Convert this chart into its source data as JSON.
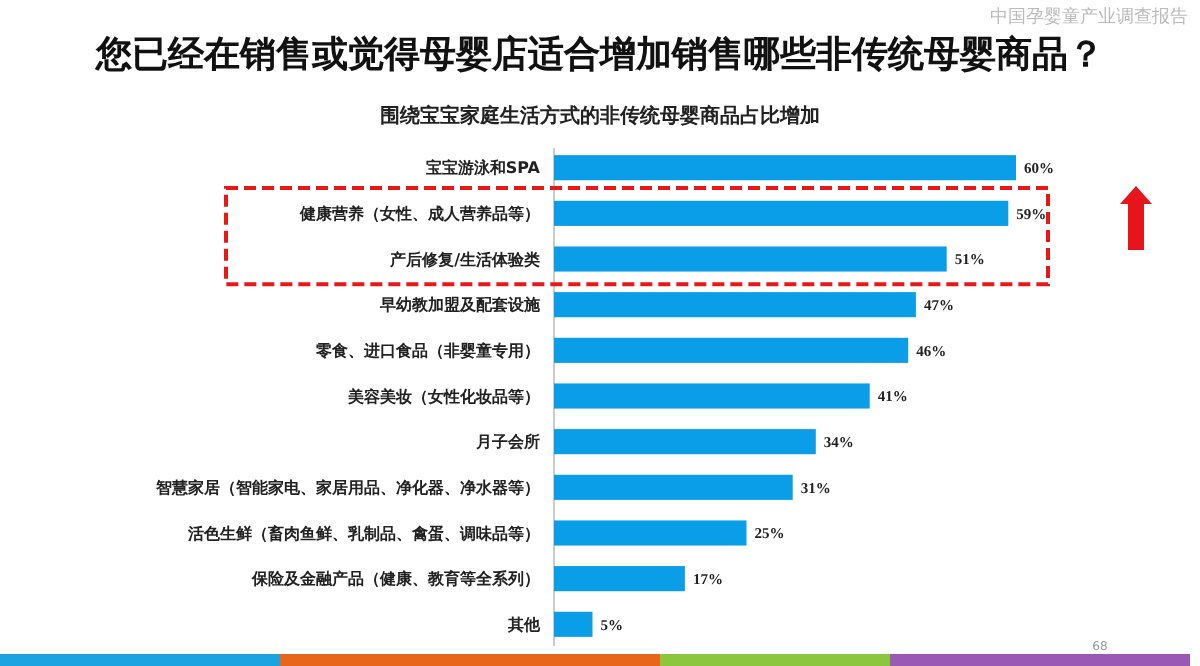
{
  "chart_data": {
    "type": "bar",
    "orientation": "horizontal",
    "relative": false,
    "title": "您已经在销售或觉得母婴店适合增加销售哪些非传统母婴商品？",
    "subtitle": "围绕宝宝家庭生活方式的非传统母婴商品占比增加",
    "categories": [
      "宝宝游泳和SPA",
      "健康营养（女性、成人营养品等）",
      "产后修复/生活体验类",
      "早幼教加盟及配套设施",
      "零食、进口食品（非婴童专用）",
      "美容美妆（女性化妆品等）",
      "月子会所",
      "智慧家居（智能家电、家居用品、净化器、净水器等）",
      "活色生鲜（畜肉鱼鲜、乳制品、禽蛋、调味品等）",
      "保险及金融产品（健康、教育等全系列）",
      "其他"
    ],
    "values": [
      60,
      59,
      51,
      47,
      46,
      41,
      34,
      31,
      25,
      17,
      5
    ],
    "value_labels": [
      "60%",
      "59%",
      "51%",
      "47%",
      "46%",
      "41%",
      "34%",
      "31%",
      "25%",
      "17%",
      "5%"
    ],
    "color": "#0b9ee8",
    "annotations": [
      "中国孕婴童产业调查报告",
      "68"
    ]
  }
}
